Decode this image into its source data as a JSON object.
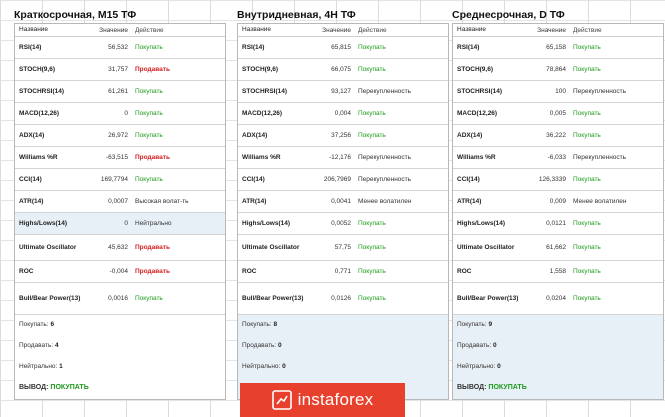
{
  "panels": [
    {
      "title": "Краткосрочная, M15 ТФ",
      "headers": [
        "Название",
        "Значение",
        "Действие"
      ],
      "rows": [
        {
          "name": "RSI(14)",
          "value": "56,532",
          "action": "Покупать",
          "tone": "green"
        },
        {
          "name": "STOCH(9,6)",
          "value": "31,757",
          "action": "Продавать",
          "tone": "red"
        },
        {
          "name": "STOCHRSI(14)",
          "value": "61,261",
          "action": "Покупать",
          "tone": "green"
        },
        {
          "name": "MACD(12,26)",
          "value": "0",
          "action": "Покупать",
          "tone": "green"
        },
        {
          "name": "ADX(14)",
          "value": "26,972",
          "action": "Покупать",
          "tone": "green"
        },
        {
          "name": "Williams %R",
          "value": "-63,515",
          "action": "Продавать",
          "tone": "red"
        },
        {
          "name": "CCI(14)",
          "value": "169,7794",
          "action": "Покупать",
          "tone": "green"
        },
        {
          "name": "ATR(14)",
          "value": "0,0007",
          "action": "Высокая волат-ть",
          "tone": "dark"
        },
        {
          "name": "Highs/Lows(14)",
          "value": "0",
          "action": "Нейтрально",
          "tone": "dark"
        },
        {
          "name": "Ultimate Oscillator",
          "value": "45,632",
          "action": "Продавать",
          "tone": "red"
        },
        {
          "name": "ROC",
          "value": "-0,004",
          "action": "Продавать",
          "tone": "red"
        },
        {
          "name": "Bull/Bear Power(13)",
          "value": "0,0016",
          "action": "Покупать",
          "tone": "green"
        }
      ],
      "summary": {
        "buy_label": "Покупать:",
        "buy": "6",
        "sell_label": "Продавать:",
        "sell": "4",
        "neutral_label": "Нейтрально:",
        "neutral": "1",
        "verdict_label": "ВЫВОД:",
        "verdict": "ПОКУПАТЬ"
      }
    },
    {
      "title": "Внутридневная, 4H ТФ",
      "headers": [
        "Название",
        "Значение",
        "Действие"
      ],
      "rows": [
        {
          "name": "RSI(14)",
          "value": "65,815",
          "action": "Покупать",
          "tone": "green"
        },
        {
          "name": "STOCH(9,6)",
          "value": "66,075",
          "action": "Покупать",
          "tone": "green"
        },
        {
          "name": "STOCHRSI(14)",
          "value": "93,127",
          "action": "Перекупленность",
          "tone": "dark"
        },
        {
          "name": "MACD(12,26)",
          "value": "0,004",
          "action": "Покупать",
          "tone": "green"
        },
        {
          "name": "ADX(14)",
          "value": "37,256",
          "action": "Покупать",
          "tone": "green"
        },
        {
          "name": "Williams %R",
          "value": "-12,176",
          "action": "Перекупленность",
          "tone": "dark"
        },
        {
          "name": "CCI(14)",
          "value": "206,7969",
          "action": "Перекупленность",
          "tone": "dark"
        },
        {
          "name": "ATR(14)",
          "value": "0,0041",
          "action": "Менее волатилен",
          "tone": "dark"
        },
        {
          "name": "Highs/Lows(14)",
          "value": "0,0052",
          "action": "Покупать",
          "tone": "green"
        },
        {
          "name": "Ultimate Oscillator",
          "value": "57,75",
          "action": "Покупать",
          "tone": "green"
        },
        {
          "name": "ROC",
          "value": "0,771",
          "action": "Покупать",
          "tone": "green"
        },
        {
          "name": "Bull/Bear Power(13)",
          "value": "0,0126",
          "action": "Покупать",
          "tone": "green"
        }
      ],
      "summary": {
        "buy_label": "Покупать:",
        "buy": "8",
        "sell_label": "Продавать:",
        "sell": "0",
        "neutral_label": "Нейтрально:",
        "neutral": "0",
        "verdict_label": "",
        "verdict": ""
      }
    },
    {
      "title": "Среднесрочная, D ТФ",
      "headers": [
        "Название",
        "Значение",
        "Действие"
      ],
      "rows": [
        {
          "name": "RSI(14)",
          "value": "65,158",
          "action": "Покупать",
          "tone": "green"
        },
        {
          "name": "STOCH(9,6)",
          "value": "78,864",
          "action": "Покупать",
          "tone": "green"
        },
        {
          "name": "STOCHRSI(14)",
          "value": "100",
          "action": "Перекупленность",
          "tone": "dark"
        },
        {
          "name": "MACD(12,26)",
          "value": "0,005",
          "action": "Покупать",
          "tone": "green"
        },
        {
          "name": "ADX(14)",
          "value": "36,222",
          "action": "Покупать",
          "tone": "green"
        },
        {
          "name": "Williams %R",
          "value": "-6,033",
          "action": "Перекупленность",
          "tone": "dark"
        },
        {
          "name": "CCI(14)",
          "value": "126,3339",
          "action": "Покупать",
          "tone": "green"
        },
        {
          "name": "ATR(14)",
          "value": "0,009",
          "action": "Менее волатилен",
          "tone": "dark"
        },
        {
          "name": "Highs/Lows(14)",
          "value": "0,0121",
          "action": "Покупать",
          "tone": "green"
        },
        {
          "name": "Ultimate Oscillator",
          "value": "61,662",
          "action": "Покупать",
          "tone": "green"
        },
        {
          "name": "ROC",
          "value": "1,558",
          "action": "Покупать",
          "tone": "green"
        },
        {
          "name": "Bull/Bear Power(13)",
          "value": "0,0204",
          "action": "Покупать",
          "tone": "green"
        }
      ],
      "summary": {
        "buy_label": "Покупать:",
        "buy": "9",
        "sell_label": "Продавать:",
        "sell": "0",
        "neutral_label": "Нейтрально:",
        "neutral": "0",
        "verdict_label": "ВЫВОД:",
        "verdict": "ПОКУПАТЬ"
      }
    }
  ],
  "watermark": {
    "text": "instaforex",
    "icon": "instaforex-logo-icon"
  },
  "colors": {
    "buy": "#1c9a1c",
    "sell": "#d42020",
    "highlight": "#e8f0f7",
    "logo": "#e7412e"
  }
}
